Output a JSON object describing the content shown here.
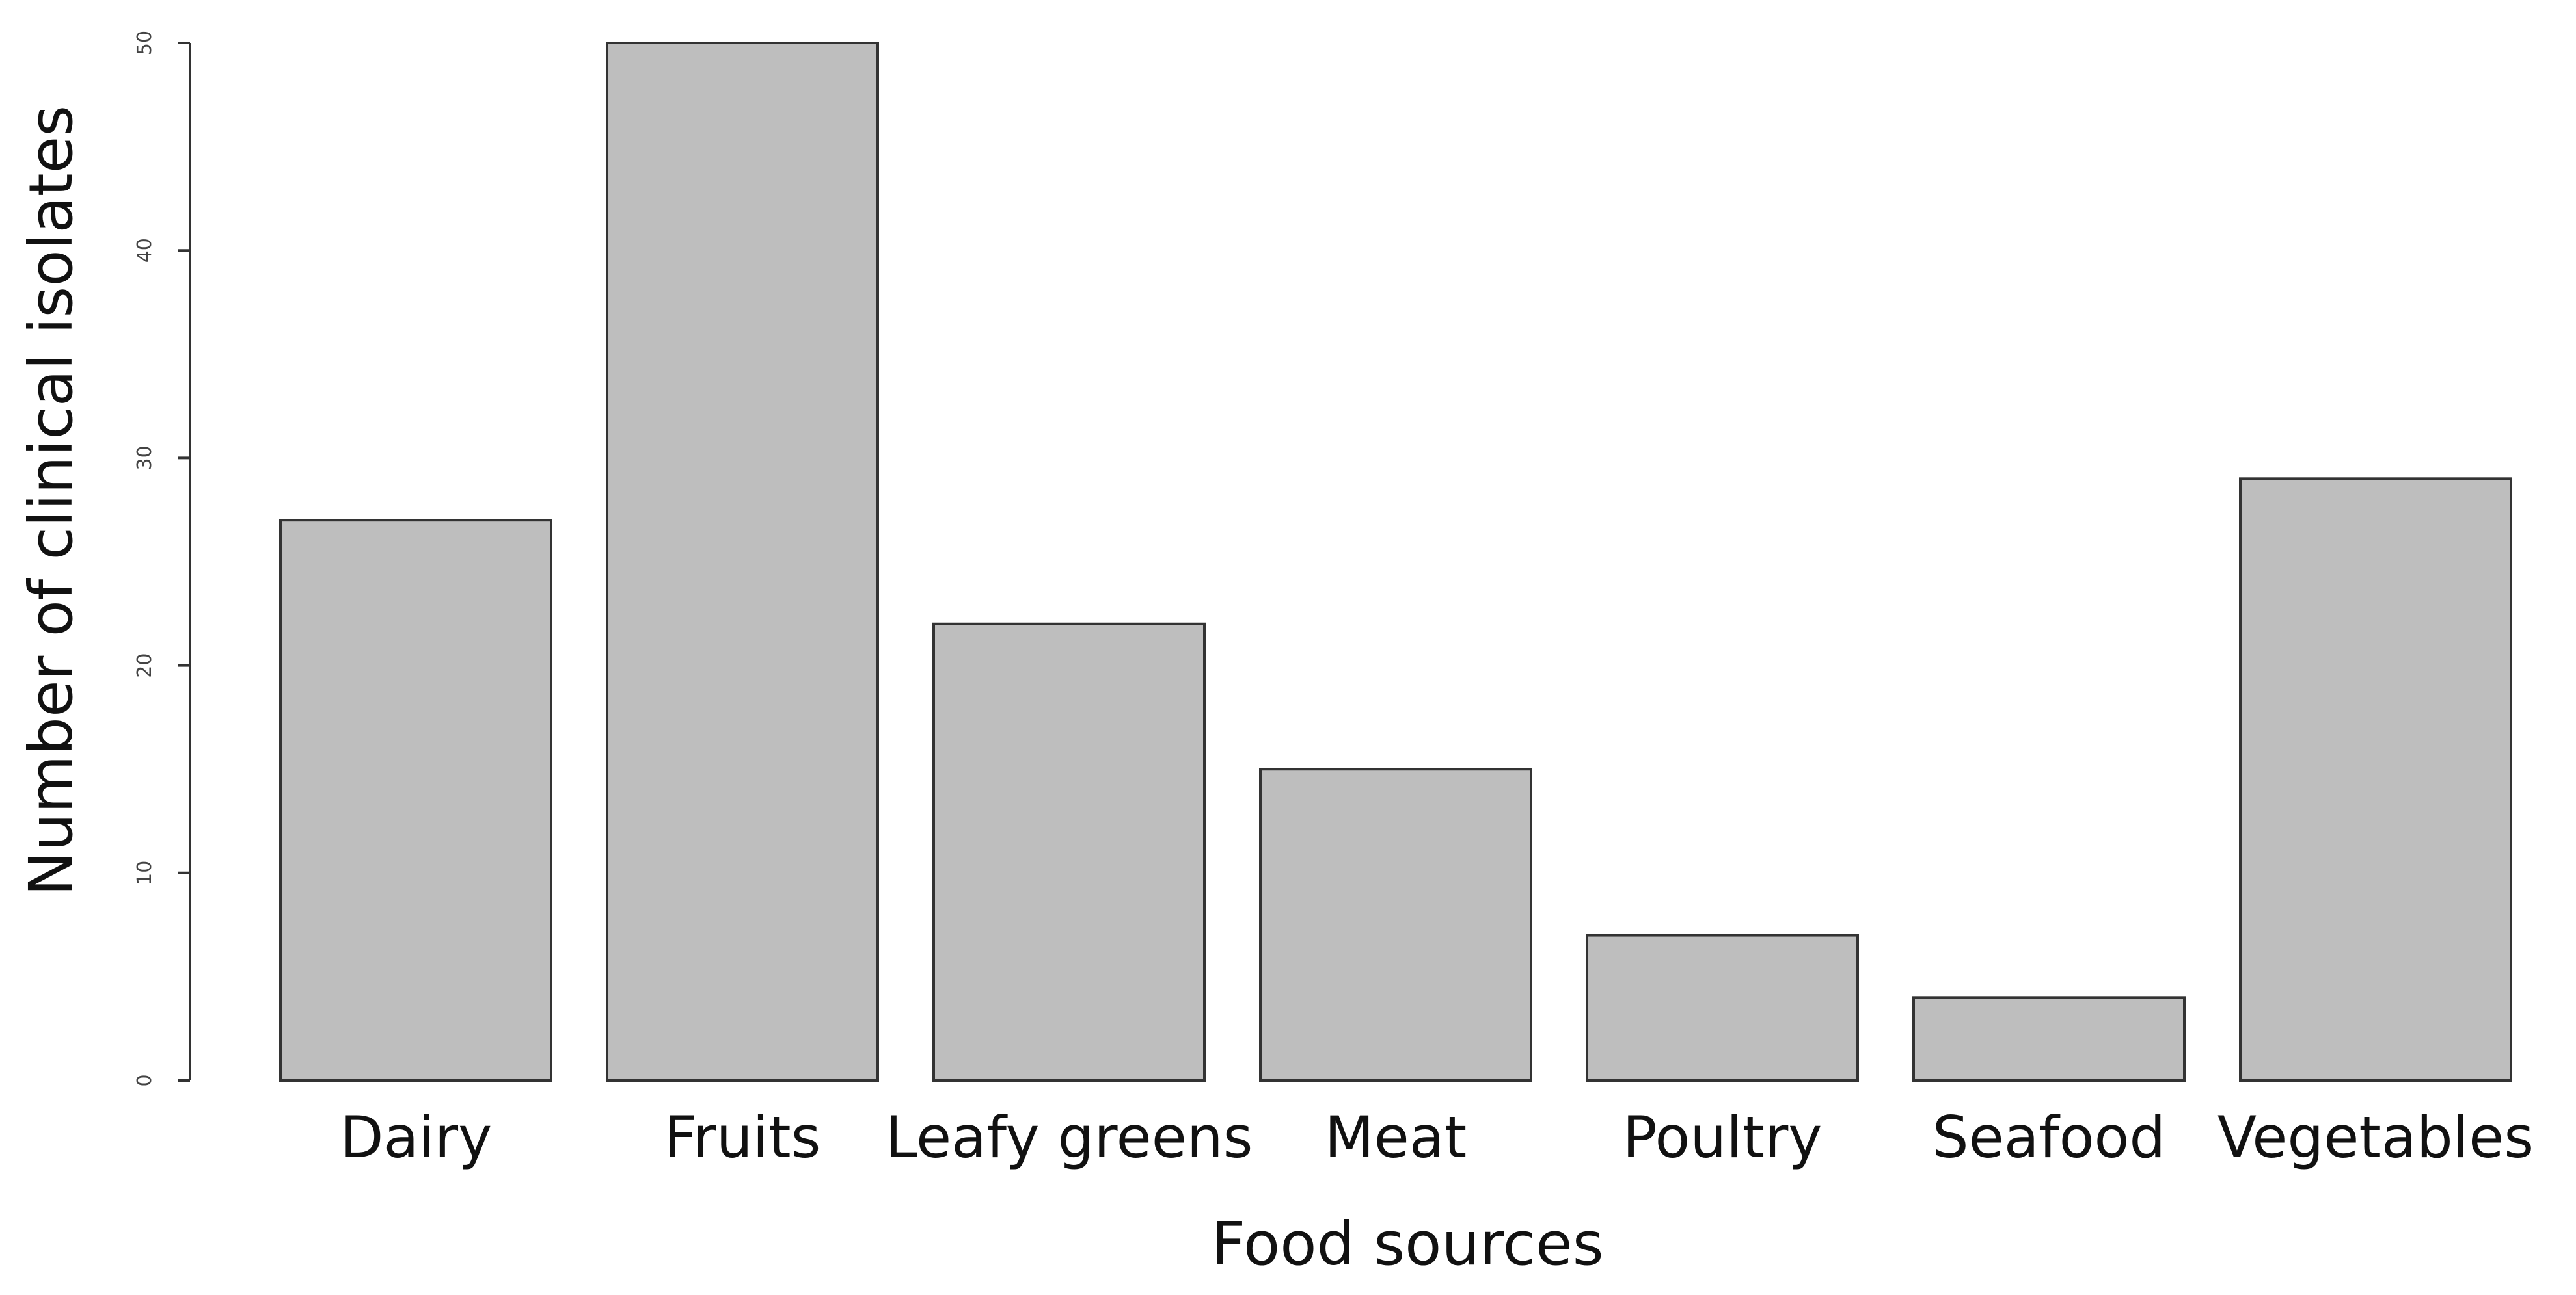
{
  "chart_data": {
    "type": "bar",
    "title": "",
    "xlabel": "Food sources",
    "ylabel": "Number of clinical isolates",
    "categories": [
      "Dairy",
      "Fruits",
      "Leafy greens",
      "Meat",
      "Poultry",
      "Seafood",
      "Vegetables"
    ],
    "values": [
      27,
      50,
      22,
      15,
      7,
      4,
      29
    ],
    "ylim": [
      0,
      50
    ],
    "yticks": [
      "0",
      "10",
      "20",
      "30",
      "40",
      "50"
    ],
    "grid": false,
    "legend": "none",
    "colors": {
      "bar_fill": "#bebebe",
      "bar_stroke": "#333333",
      "axis": "#333333"
    }
  }
}
